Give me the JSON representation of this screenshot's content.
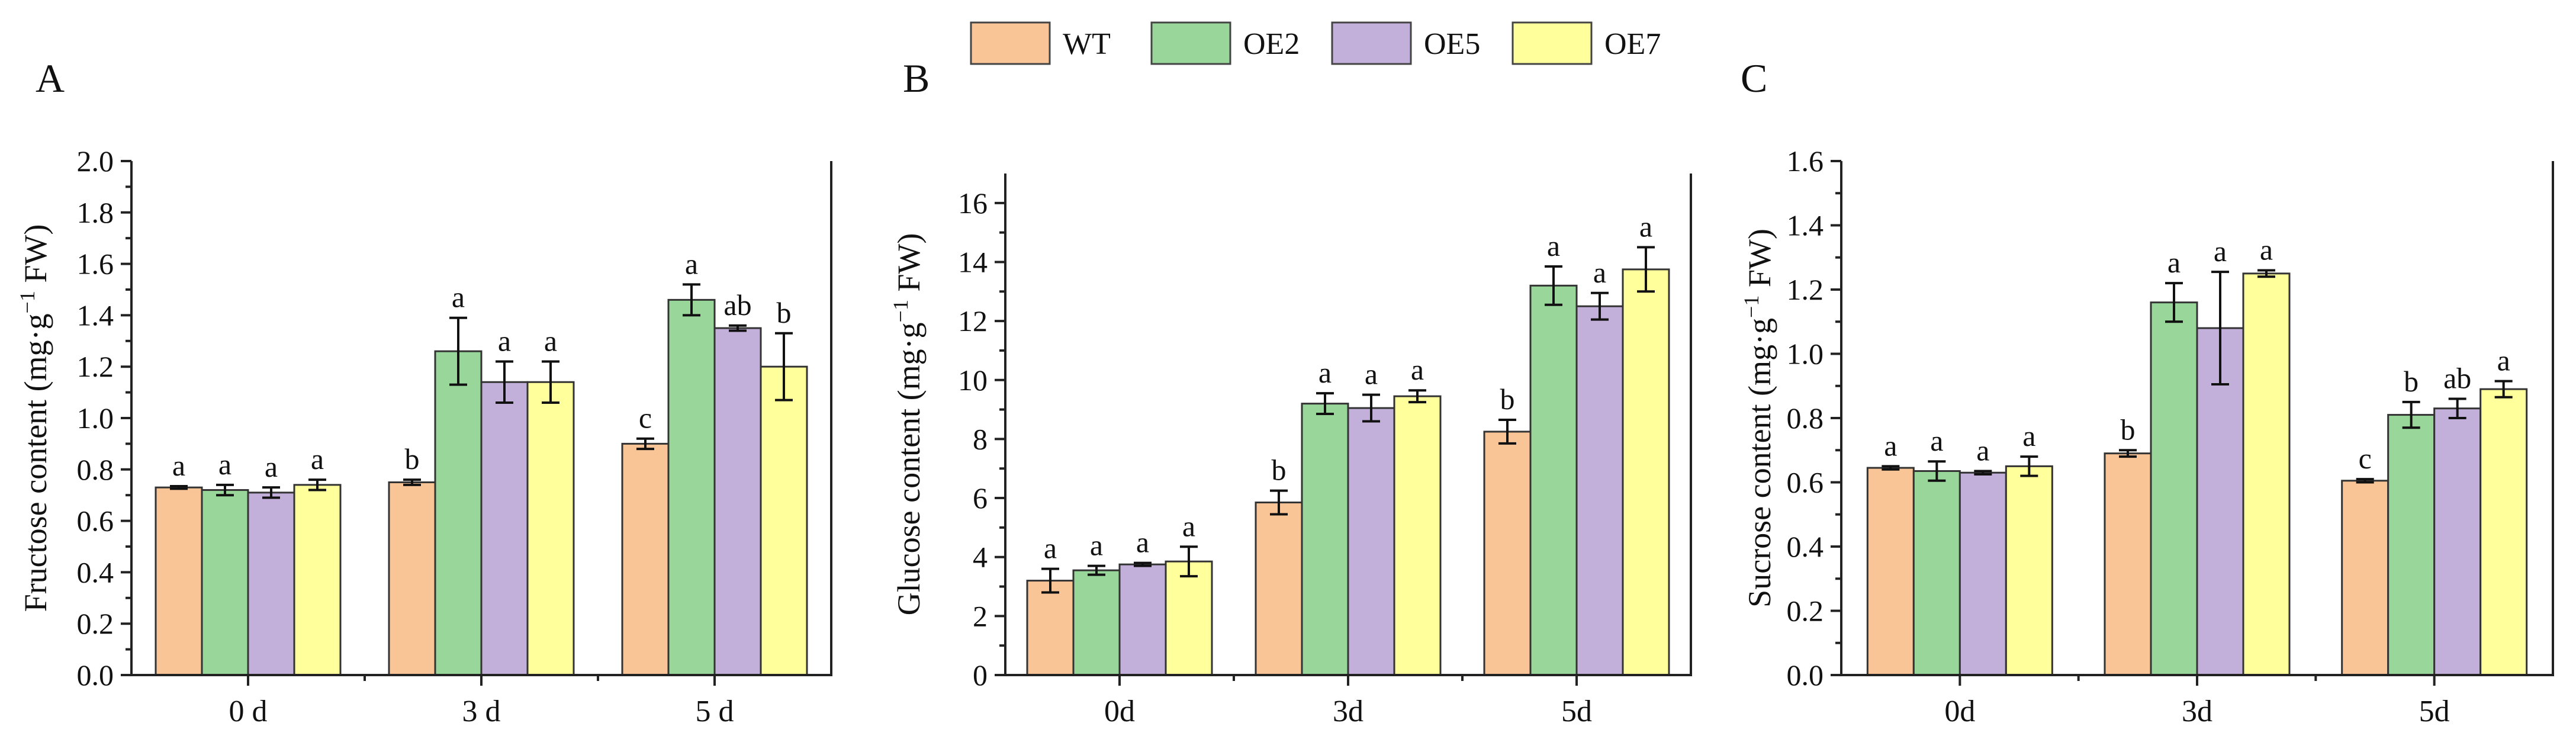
{
  "colors": {
    "WT": "#f9c496",
    "OE2": "#98d69a",
    "OE5": "#c3b0da",
    "OE7": "#ffff9c"
  },
  "legend": [
    "WT",
    "OE2",
    "OE5",
    "OE7"
  ],
  "chart_data": [
    {
      "panel": "A",
      "type": "bar",
      "ylabel_pre": "Fructose content (mg·g",
      "ylabel_sup": "−1",
      "ylabel_post": " FW)",
      "categories": [
        "0 d",
        "3 d",
        "5 d"
      ],
      "ylim": [
        0,
        2.0
      ],
      "yticks": [
        0.0,
        0.2,
        0.4,
        0.6,
        0.8,
        1.0,
        1.2,
        1.4,
        1.6,
        1.8,
        2.0
      ],
      "tick_decimals": 1,
      "series": [
        {
          "name": "WT",
          "values": [
            0.73,
            0.75,
            0.9
          ],
          "errors": [
            0.005,
            0.01,
            0.02
          ],
          "letters": [
            "a",
            "b",
            "c"
          ]
        },
        {
          "name": "OE2",
          "values": [
            0.72,
            1.26,
            1.46
          ],
          "errors": [
            0.02,
            0.13,
            0.06
          ],
          "letters": [
            "a",
            "a",
            "a"
          ]
        },
        {
          "name": "OE5",
          "values": [
            0.71,
            1.14,
            1.35
          ],
          "errors": [
            0.02,
            0.08,
            0.01
          ],
          "letters": [
            "a",
            "a",
            "ab"
          ]
        },
        {
          "name": "OE7",
          "values": [
            0.74,
            1.14,
            1.2
          ],
          "errors": [
            0.02,
            0.08,
            0.13
          ],
          "letters": [
            "a",
            "a",
            "b"
          ]
        }
      ]
    },
    {
      "panel": "B",
      "type": "bar",
      "ylabel_pre": "Glucose content (mg·g",
      "ylabel_sup": "−1",
      "ylabel_post": " FW)",
      "categories": [
        "0d",
        "3d",
        "5d"
      ],
      "ylim": [
        0,
        17
      ],
      "yticks": [
        0,
        2,
        4,
        6,
        8,
        10,
        12,
        14,
        16
      ],
      "tick_decimals": 0,
      "series": [
        {
          "name": "WT",
          "values": [
            3.2,
            5.85,
            8.25
          ],
          "errors": [
            0.4,
            0.4,
            0.4
          ],
          "letters": [
            "a",
            "b",
            "b"
          ]
        },
        {
          "name": "OE2",
          "values": [
            3.55,
            9.2,
            13.2
          ],
          "errors": [
            0.15,
            0.35,
            0.65
          ],
          "letters": [
            "a",
            "a",
            "a"
          ]
        },
        {
          "name": "OE5",
          "values": [
            3.75,
            9.05,
            12.5
          ],
          "errors": [
            0.05,
            0.45,
            0.45
          ],
          "letters": [
            "a",
            "a",
            "a"
          ]
        },
        {
          "name": "OE7",
          "values": [
            3.85,
            9.45,
            13.75
          ],
          "errors": [
            0.5,
            0.2,
            0.75
          ],
          "letters": [
            "a",
            "a",
            "a"
          ]
        }
      ]
    },
    {
      "panel": "C",
      "type": "bar",
      "ylabel_pre": "Sucrose content (mg·g",
      "ylabel_sup": "−1",
      "ylabel_post": " FW)",
      "categories": [
        "0d",
        "3d",
        "5d"
      ],
      "ylim": [
        0,
        1.6
      ],
      "yticks": [
        0.0,
        0.2,
        0.4,
        0.6,
        0.8,
        1.0,
        1.2,
        1.4,
        1.6
      ],
      "tick_decimals": 1,
      "series": [
        {
          "name": "WT",
          "values": [
            0.645,
            0.69,
            0.605
          ],
          "errors": [
            0.005,
            0.01,
            0.005
          ],
          "letters": [
            "a",
            "b",
            "c"
          ]
        },
        {
          "name": "OE2",
          "values": [
            0.635,
            1.16,
            0.81
          ],
          "errors": [
            0.03,
            0.06,
            0.04
          ],
          "letters": [
            "a",
            "a",
            "b"
          ]
        },
        {
          "name": "OE5",
          "values": [
            0.63,
            1.08,
            0.83
          ],
          "errors": [
            0.005,
            0.175,
            0.03
          ],
          "letters": [
            "a",
            "a",
            "ab"
          ]
        },
        {
          "name": "OE7",
          "values": [
            0.65,
            1.25,
            0.89
          ],
          "errors": [
            0.03,
            0.01,
            0.025
          ],
          "letters": [
            "a",
            "a",
            "a"
          ]
        }
      ]
    }
  ]
}
